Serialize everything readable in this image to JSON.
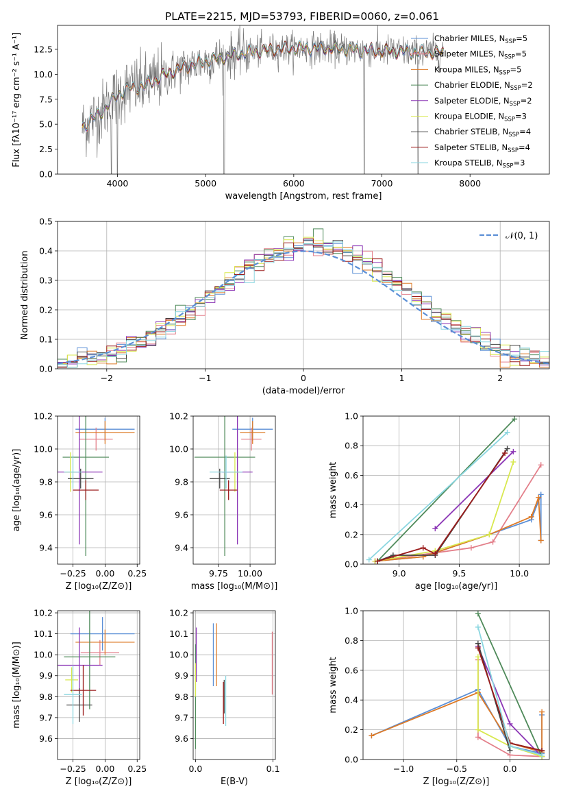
{
  "figure_title": "PLATE=2215, MJD=53793, FIBERID=0060, z=0.061",
  "colors": {
    "Chabrier MILES": "#5b8fd6",
    "Salpeter MILES": "#e37f8a",
    "Kroupa MILES": "#de7a26",
    "Chabrier ELODIE": "#4f8a5a",
    "Salpeter ELODIE": "#8b35b5",
    "Kroupa ELODIE": "#d8e84e",
    "Chabrier STELIB": "#444444",
    "Salpeter STELIB": "#9b1b1b",
    "Kroupa STELIB": "#8ad6e0",
    "data": "#777777",
    "gaussian": "#5b8fd6"
  },
  "chart_data": [
    {
      "type": "line",
      "name": "spectrum",
      "xlabel": "wavelength [Angstrom, rest frame]",
      "ylabel": "Flux [fλ10⁻¹⁷ erg cm⁻² s⁻¹ A⁻¹]",
      "xlim": [
        3320,
        8900
      ],
      "ylim": [
        0,
        14.9
      ],
      "xticks": [
        4000,
        5000,
        6000,
        7000,
        8000
      ],
      "yticks": [
        0.0,
        2.5,
        5.0,
        7.5,
        10.0,
        12.5
      ],
      "grid": false,
      "legend_position": "right",
      "legend": [
        {
          "label": "Chabrier MILES, N",
          "sub": "SSP",
          "tail": "=5"
        },
        {
          "label": "Salpeter MILES, N",
          "sub": "SSP",
          "tail": "=5"
        },
        {
          "label": "Kroupa MILES, N",
          "sub": "SSP",
          "tail": "=5"
        },
        {
          "label": "Chabrier ELODIE, N",
          "sub": "SSP",
          "tail": "=2"
        },
        {
          "label": "Salpeter ELODIE, N",
          "sub": "SSP",
          "tail": "=2"
        },
        {
          "label": "Kroupa ELODIE, N",
          "sub": "SSP",
          "tail": "=3"
        },
        {
          "label": "Chabrier STELIB, N",
          "sub": "SSP",
          "tail": "=4"
        },
        {
          "label": "Salpeter STELIB, N",
          "sub": "SSP",
          "tail": "=4"
        },
        {
          "label": "Kroupa STELIB, N",
          "sub": "SSP",
          "tail": "=3"
        }
      ],
      "continuum_data": {
        "x": [
          3600,
          3700,
          3800,
          3900,
          4000,
          4100,
          4200,
          4300,
          4400,
          4600,
          4800,
          5000,
          5200,
          5400,
          5600,
          5800,
          6000,
          6200,
          6400,
          6600,
          6800,
          7000,
          7200,
          7400,
          7600,
          7700
        ],
        "y": [
          4.6,
          5.5,
          6.0,
          7.0,
          7.9,
          8.5,
          8.7,
          8.8,
          9.3,
          10.2,
          10.8,
          11.3,
          11.7,
          12.1,
          12.3,
          12.5,
          12.6,
          12.6,
          12.6,
          12.5,
          12.4,
          12.3,
          12.3,
          12.2,
          12.2,
          12.2
        ]
      },
      "deep_absorption_spikes": [
        3930,
        4000,
        5210,
        6800,
        7410
      ]
    },
    {
      "type": "line",
      "name": "residual-histogram",
      "xlabel": "(data-model)/error",
      "ylabel": "Normed distribution",
      "xlim": [
        -2.5,
        2.5
      ],
      "ylim": [
        0,
        0.5
      ],
      "xticks": [
        -2,
        -1,
        0,
        1,
        2
      ],
      "yticks": [
        0.0,
        0.1,
        0.2,
        0.3,
        0.4,
        0.5
      ],
      "grid": true,
      "legend_position": "top-right",
      "gaussian_label": "𝒩(0, 1)",
      "bins": 50
    },
    {
      "type": "scatter",
      "name": "age-vs-Z",
      "xlabel": "Z [log₁₀(Z/Z⊙)]",
      "ylabel": "age  [log₁₀(age/yr)]",
      "xlim": [
        -0.37,
        0.27
      ],
      "ylim": [
        9.3,
        10.2
      ],
      "xticks": [
        -0.25,
        0.0,
        0.25
      ],
      "xtick_labels": [
        "−0.25",
        "0.00",
        "0.25"
      ],
      "yticks": [
        9.4,
        9.6,
        9.8,
        10.0,
        10.2
      ],
      "points": [
        {
          "model": "Chabrier MILES",
          "x": 0.0,
          "xerr": 0.23,
          "y": 10.12,
          "yerr": 0.07
        },
        {
          "model": "Salpeter MILES",
          "x": -0.07,
          "xerr": 0.13,
          "y": 10.06,
          "yerr": 0.07
        },
        {
          "model": "Kroupa MILES",
          "x": 0.0,
          "xerr": 0.23,
          "y": 10.1,
          "yerr": 0.07
        },
        {
          "model": "Chabrier ELODIE",
          "x": -0.15,
          "xerr": 0.18,
          "y": 9.95,
          "yerr": 0.6
        },
        {
          "model": "Salpeter ELODIE",
          "x": -0.2,
          "xerr": 0.18,
          "y": 9.86,
          "yerr": 0.44
        },
        {
          "model": "Kroupa ELODIE",
          "x": -0.27,
          "xerr": 0.04,
          "y": 9.86,
          "yerr": 0.12
        },
        {
          "model": "Chabrier STELIB",
          "x": -0.19,
          "xerr": 0.1,
          "y": 9.82,
          "yerr": 0.06
        },
        {
          "model": "Salpeter STELIB",
          "x": -0.15,
          "xerr": 0.1,
          "y": 9.75,
          "yerr": 0.06
        },
        {
          "model": "Kroupa STELIB",
          "x": -0.25,
          "xerr": 0.07,
          "y": 9.86,
          "yerr": 0.1
        }
      ]
    },
    {
      "type": "scatter",
      "name": "age-vs-mass",
      "xlabel": "mass [log₁₀(M/M⊙)]",
      "ylabel": "",
      "xlim": [
        9.55,
        10.2
      ],
      "ylim": [
        9.3,
        10.2
      ],
      "xticks": [
        9.75,
        10.0
      ],
      "xtick_labels": [
        "9.75",
        "10.00"
      ],
      "yticks": [
        9.4,
        9.6,
        9.8,
        10.0,
        10.2
      ],
      "points": [
        {
          "model": "Chabrier MILES",
          "x": 10.02,
          "xerr": 0.16,
          "y": 10.12,
          "yerr": 0.07
        },
        {
          "model": "Salpeter MILES",
          "x": 10.01,
          "xerr": 0.08,
          "y": 10.06,
          "yerr": 0.07
        },
        {
          "model": "Kroupa MILES",
          "x": 10.02,
          "xerr": 0.1,
          "y": 10.1,
          "yerr": 0.07
        },
        {
          "model": "Chabrier ELODIE",
          "x": 9.8,
          "xerr": 0.24,
          "y": 9.95,
          "yerr": 0.6
        },
        {
          "model": "Salpeter ELODIE",
          "x": 9.9,
          "xerr": 0.12,
          "y": 9.86,
          "yerr": 0.44
        },
        {
          "model": "Kroupa ELODIE",
          "x": 9.88,
          "xerr": 0.04,
          "y": 9.86,
          "yerr": 0.12
        },
        {
          "model": "Chabrier STELIB",
          "x": 9.76,
          "xerr": 0.08,
          "y": 9.82,
          "yerr": 0.06
        },
        {
          "model": "Salpeter STELIB",
          "x": 9.83,
          "xerr": 0.07,
          "y": 9.75,
          "yerr": 0.06
        },
        {
          "model": "Kroupa STELIB",
          "x": 9.81,
          "xerr": 0.13,
          "y": 9.86,
          "yerr": 0.1
        }
      ]
    },
    {
      "type": "line",
      "name": "mass-weight-vs-age",
      "xlabel": "age  [log₁₀(age/yr)]",
      "ylabel": "mass weight",
      "xlim": [
        8.7,
        10.25
      ],
      "ylim": [
        0,
        1.0
      ],
      "xticks": [
        9.0,
        9.5,
        10.0
      ],
      "xtick_labels": [
        "9.0",
        "9.5",
        "10.0"
      ],
      "yticks": [
        0.0,
        0.2,
        0.4,
        0.6,
        0.8,
        1.0
      ],
      "series": [
        {
          "model": "Chabrier MILES",
          "x": [
            8.8,
            9.2,
            9.75,
            10.1,
            10.18,
            10.18
          ],
          "y": [
            0.02,
            0.05,
            0.2,
            0.3,
            0.47,
            0.16
          ]
        },
        {
          "model": "Salpeter MILES",
          "x": [
            8.8,
            9.6,
            9.78,
            10.18
          ],
          "y": [
            0.02,
            0.11,
            0.15,
            0.67
          ]
        },
        {
          "model": "Kroupa MILES",
          "x": [
            8.8,
            9.2,
            9.75,
            10.1,
            10.16,
            10.18
          ],
          "y": [
            0.02,
            0.05,
            0.2,
            0.32,
            0.45,
            0.16
          ]
        },
        {
          "model": "Chabrier ELODIE",
          "x": [
            8.82,
            9.96
          ],
          "y": [
            0.02,
            0.98
          ]
        },
        {
          "model": "Salpeter ELODIE",
          "x": [
            9.3,
            9.95
          ],
          "y": [
            0.24,
            0.76
          ]
        },
        {
          "model": "Kroupa ELODIE",
          "x": [
            8.8,
            9.3,
            9.75,
            9.95
          ],
          "y": [
            0.02,
            0.09,
            0.2,
            0.69
          ]
        },
        {
          "model": "Chabrier STELIB",
          "x": [
            8.82,
            8.95,
            9.3,
            9.9
          ],
          "y": [
            0.02,
            0.06,
            0.06,
            0.78
          ]
        },
        {
          "model": "Salpeter STELIB",
          "x": [
            8.82,
            9.2,
            9.3,
            9.88
          ],
          "y": [
            0.02,
            0.11,
            0.07,
            0.75
          ]
        },
        {
          "model": "Kroupa STELIB",
          "x": [
            8.75,
            9.9
          ],
          "y": [
            0.03,
            0.89
          ]
        }
      ]
    },
    {
      "type": "scatter",
      "name": "mass-vs-Z",
      "xlabel": "Z [log₁₀(Z/Z⊙)]",
      "ylabel": "mass [log₁₀(M/M⊙)]",
      "xlim": [
        -0.37,
        0.27
      ],
      "ylim": [
        9.5,
        10.21
      ],
      "xticks": [
        -0.25,
        0.0,
        0.25
      ],
      "xtick_labels": [
        "−0.25",
        "0.00",
        "0.25"
      ],
      "yticks": [
        9.6,
        9.7,
        9.8,
        9.9,
        10.0,
        10.1,
        10.2
      ],
      "points": [
        {
          "model": "Chabrier MILES",
          "x": -0.02,
          "xerr": 0.25,
          "y": 10.1,
          "yerr": 0.08
        },
        {
          "model": "Salpeter MILES",
          "x": -0.04,
          "xerr": 0.15,
          "y": 10.01,
          "yerr": 0.06
        },
        {
          "model": "Kroupa MILES",
          "x": 0.0,
          "xerr": 0.23,
          "y": 10.06,
          "yerr": 0.06
        },
        {
          "model": "Chabrier ELODIE",
          "x": -0.12,
          "xerr": 0.2,
          "y": 9.99,
          "yerr": 0.25
        },
        {
          "model": "Salpeter ELODIE",
          "x": -0.2,
          "xerr": 0.18,
          "y": 9.95,
          "yerr": 0.18
        },
        {
          "model": "Kroupa ELODIE",
          "x": -0.26,
          "xerr": 0.05,
          "y": 9.88,
          "yerr": 0.06
        },
        {
          "model": "Chabrier STELIB",
          "x": -0.2,
          "xerr": 0.1,
          "y": 9.76,
          "yerr": 0.08
        },
        {
          "model": "Salpeter STELIB",
          "x": -0.17,
          "xerr": 0.1,
          "y": 9.83,
          "yerr": 0.12
        },
        {
          "model": "Kroupa STELIB",
          "x": -0.25,
          "xerr": 0.07,
          "y": 9.81,
          "yerr": 0.14
        }
      ]
    },
    {
      "type": "scatter",
      "name": "mass-vs-EBV",
      "xlabel": "E(B-V)",
      "ylabel": "",
      "xlim": [
        -0.003,
        0.103
      ],
      "ylim": [
        9.5,
        10.21
      ],
      "xticks": [
        0.0,
        0.1
      ],
      "xtick_labels": [
        "0.0",
        "0.1"
      ],
      "yticks": [
        9.6,
        9.7,
        9.8,
        9.9,
        10.0,
        10.1,
        10.2
      ],
      "points": [
        {
          "model": "Chabrier MILES",
          "x": 0.023,
          "y": 10.0,
          "yerr": 0.15
        },
        {
          "model": "Salpeter MILES",
          "x": 0.099,
          "y": 9.96,
          "yerr": 0.15
        },
        {
          "model": "Kroupa MILES",
          "x": 0.027,
          "y": 10.0,
          "yerr": 0.15
        },
        {
          "model": "Chabrier ELODIE",
          "x": 0.0,
          "y": 9.8,
          "yerr": 0.25
        },
        {
          "model": "Salpeter ELODIE",
          "x": 0.001,
          "y": 10.0,
          "yerr": 0.13
        },
        {
          "model": "Kroupa ELODIE",
          "x": 0.0,
          "y": 9.88,
          "yerr": 0.08
        },
        {
          "model": "Chabrier STELIB",
          "x": 0.037,
          "y": 9.8,
          "yerr": 0.08
        },
        {
          "model": "Salpeter STELIB",
          "x": 0.036,
          "y": 9.77,
          "yerr": 0.1
        },
        {
          "model": "Kroupa STELIB",
          "x": 0.039,
          "y": 9.78,
          "yerr": 0.12
        }
      ]
    },
    {
      "type": "line",
      "name": "mass-weight-vs-Z",
      "xlabel": "Z [log₁₀(Z/Z⊙)]",
      "ylabel": "mass weight",
      "xlim": [
        -1.38,
        0.37
      ],
      "ylim": [
        0,
        1.0
      ],
      "xticks": [
        -1.0,
        -0.5,
        0.0
      ],
      "xtick_labels": [
        "−1.0",
        "−0.5",
        "0.0"
      ],
      "yticks": [
        0.0,
        0.2,
        0.4,
        0.6,
        0.8,
        1.0
      ],
      "series": [
        {
          "model": "Chabrier MILES",
          "x": [
            -1.3,
            -0.3,
            0.0,
            0.3,
            0.3
          ],
          "y": [
            0.16,
            0.47,
            0.09,
            0.04,
            0.3
          ]
        },
        {
          "model": "Salpeter MILES",
          "x": [
            -0.3,
            -0.3,
            0.0,
            0.3
          ],
          "y": [
            0.67,
            0.15,
            0.03,
            0.02
          ]
        },
        {
          "model": "Kroupa MILES",
          "x": [
            -1.3,
            -0.3,
            0.0,
            0.3,
            0.3
          ],
          "y": [
            0.16,
            0.45,
            0.11,
            0.05,
            0.32
          ]
        },
        {
          "model": "Chabrier ELODIE",
          "x": [
            -0.3,
            0.3
          ],
          "y": [
            0.98,
            0.02
          ]
        },
        {
          "model": "Salpeter ELODIE",
          "x": [
            -0.3,
            0.0,
            0.3
          ],
          "y": [
            0.76,
            0.24,
            0.02
          ]
        },
        {
          "model": "Kroupa ELODIE",
          "x": [
            -0.3,
            -0.3,
            0.0,
            0.3
          ],
          "y": [
            0.69,
            0.2,
            0.09,
            0.02
          ]
        },
        {
          "model": "Chabrier STELIB",
          "x": [
            -0.3,
            0.0,
            0.0,
            0.3
          ],
          "y": [
            0.78,
            0.06,
            0.11,
            0.06
          ]
        },
        {
          "model": "Salpeter STELIB",
          "x": [
            -0.3,
            0.0,
            0.3
          ],
          "y": [
            0.75,
            0.11,
            0.06
          ]
        },
        {
          "model": "Kroupa STELIB",
          "x": [
            -0.3,
            0.0,
            0.3
          ],
          "y": [
            0.89,
            0.09,
            0.03
          ]
        }
      ]
    }
  ]
}
